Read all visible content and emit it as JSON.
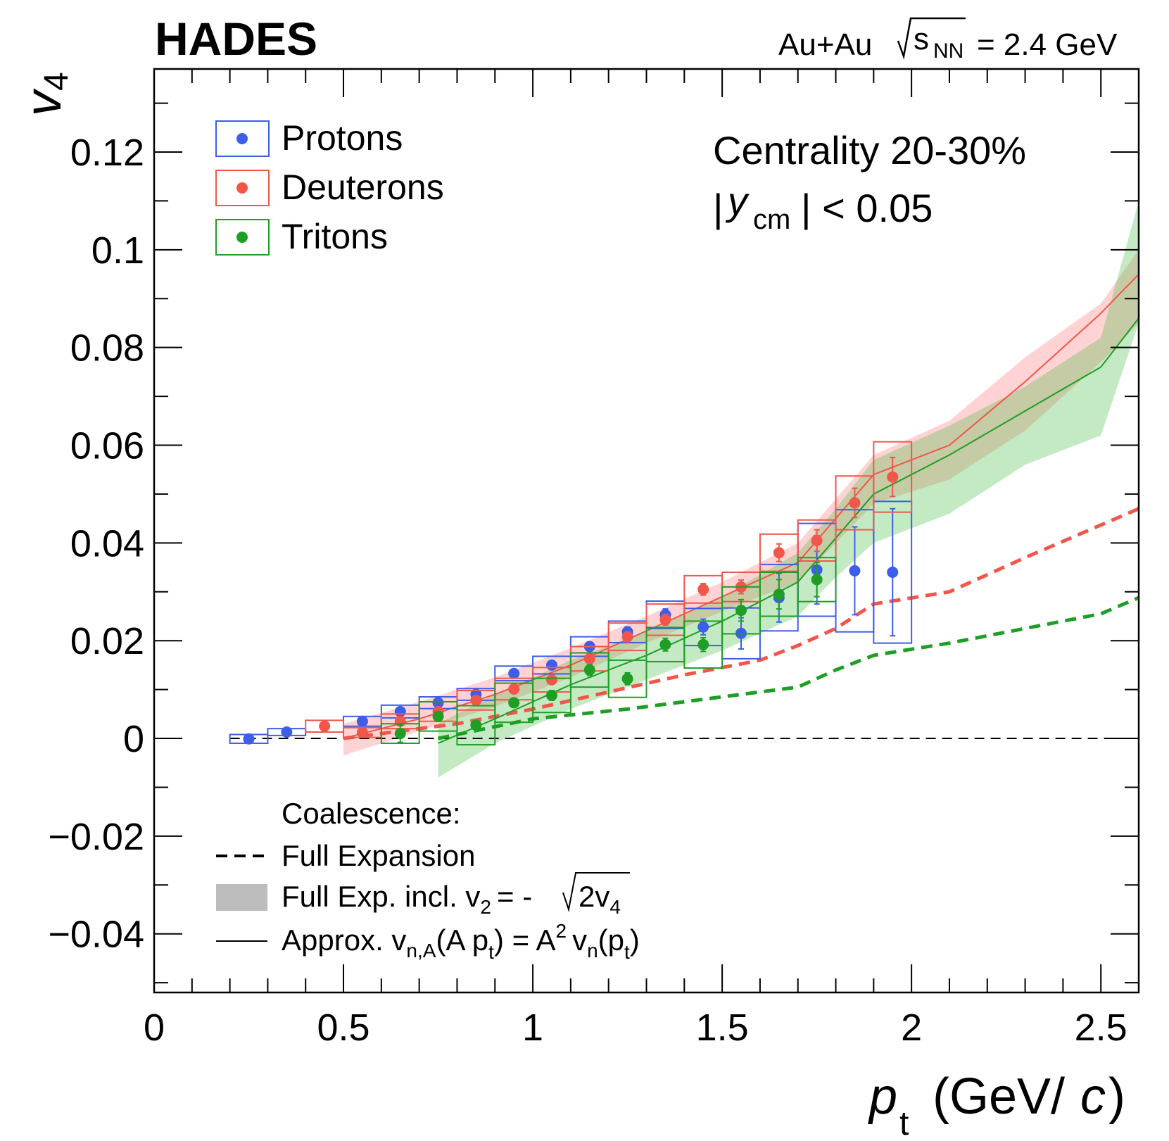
{
  "chart_data": {
    "type": "scatter",
    "experiment": "HADES",
    "system": {
      "collision": "Au+Au",
      "sqrt_s": "s",
      "sqrt_sub": "NN",
      "energy": "= 2.4 GeV"
    },
    "annotation": {
      "centrality": "Centrality 20-30%",
      "rap_a": "|",
      "rap_y": "y",
      "rap_sub": "cm",
      "rap_b": "| < 0.05"
    },
    "ylabel": {
      "main": "v",
      "sub": "4"
    },
    "xlabel": {
      "main": "p",
      "sub": "t",
      "unit_a": "(GeV/",
      "unit_c": "c",
      "unit_b": ")"
    },
    "xlim": [
      0,
      2.6
    ],
    "ylim": [
      -0.052,
      0.137
    ],
    "xticks": [
      0,
      0.5,
      1,
      1.5,
      2,
      2.5
    ],
    "xticks_minor": [
      0.1,
      0.2,
      0.3,
      0.4,
      0.6,
      0.7,
      0.8,
      0.9,
      1.1,
      1.2,
      1.3,
      1.4,
      1.6,
      1.7,
      1.8,
      1.9,
      2.1,
      2.2,
      2.3,
      2.4,
      2.6
    ],
    "yticks": [
      {
        "value": -0.04,
        "label": "−0.04"
      },
      {
        "value": -0.02,
        "label": "−0.02"
      },
      0,
      0.02,
      0.04,
      0.06,
      0.08,
      0.1,
      0.12
    ],
    "yticks_minor": [
      -0.05,
      -0.03,
      -0.01,
      0.01,
      0.03,
      0.05,
      0.07,
      0.09,
      0.11,
      0.13
    ],
    "bin_width": 0.1,
    "series": [
      {
        "name": "Protons",
        "color": "#3d5ee8",
        "x": [
          0.25,
          0.35,
          0.55,
          0.65,
          0.75,
          0.85,
          0.95,
          1.05,
          1.15,
          1.25,
          1.35,
          1.45,
          1.55,
          1.65,
          1.75,
          1.85,
          1.95
        ],
        "values": [
          -0.0001,
          0.0013,
          0.0035,
          0.0055,
          0.0073,
          0.009,
          0.0133,
          0.015,
          0.0188,
          0.0218,
          0.0253,
          0.0228,
          0.0215,
          0.0288,
          0.0345,
          0.0343,
          0.034
        ],
        "stat": [
          0.0003,
          0.0003,
          0.0004,
          0.0005,
          0.0005,
          0.0006,
          0.0007,
          0.0008,
          0.0009,
          0.001,
          0.0012,
          0.0016,
          0.0032,
          0.005,
          0.007,
          0.009,
          0.013
        ],
        "sys": [
          0.0009,
          0.0007,
          0.001,
          0.0013,
          0.0012,
          0.0012,
          0.0015,
          0.0018,
          0.002,
          0.0022,
          0.0028,
          0.0038,
          0.0052,
          0.0068,
          0.0095,
          0.0125,
          0.0145
        ]
      },
      {
        "name": "Deuterons",
        "color": "#f2564a",
        "x": [
          0.45,
          0.55,
          0.65,
          0.75,
          0.85,
          0.95,
          1.05,
          1.15,
          1.25,
          1.35,
          1.45,
          1.55,
          1.65,
          1.75,
          1.85,
          1.95
        ],
        "values": [
          0.0025,
          0.0012,
          0.0035,
          0.0055,
          0.0078,
          0.0101,
          0.012,
          0.0163,
          0.0208,
          0.0243,
          0.0305,
          0.031,
          0.038,
          0.0405,
          0.0482,
          0.0535
        ],
        "stat": [
          0.0004,
          0.0004,
          0.0005,
          0.0005,
          0.0006,
          0.0007,
          0.0008,
          0.0009,
          0.001,
          0.0011,
          0.0012,
          0.0014,
          0.0018,
          0.0022,
          0.003,
          0.004
        ],
        "sys": [
          0.0012,
          0.001,
          0.0015,
          0.002,
          0.002,
          0.0022,
          0.0025,
          0.0025,
          0.0028,
          0.0032,
          0.0028,
          0.003,
          0.0038,
          0.0042,
          0.0055,
          0.0072
        ],
        "fe_x": [
          0.5,
          0.8,
          1.0,
          1.2,
          1.4,
          1.6,
          1.7,
          1.8,
          1.9,
          2.1,
          2.3,
          2.6
        ],
        "fe": [
          0,
          0.003,
          0.006,
          0.0095,
          0.013,
          0.016,
          0.019,
          0.0225,
          0.0275,
          0.03,
          0.037,
          0.047
        ],
        "approx_x": [
          0.5,
          0.7,
          0.9,
          1.1,
          1.3,
          1.5,
          1.7,
          1.8,
          1.9,
          2.1,
          2.3,
          2.5,
          2.6
        ],
        "approx": [
          0,
          0.004,
          0.009,
          0.015,
          0.022,
          0.029,
          0.036,
          0.045,
          0.054,
          0.06,
          0.073,
          0.087,
          0.095
        ],
        "band_low": [
          -0.0035,
          0.0015,
          0.0065,
          0.0125,
          0.0195,
          0.026,
          0.032,
          0.04,
          0.048,
          0.053,
          0.063,
          0.077,
          0.085
        ],
        "band_high": [
          0.003,
          0.0075,
          0.0125,
          0.0185,
          0.025,
          0.032,
          0.04,
          0.049,
          0.058,
          0.065,
          0.078,
          0.089,
          0.1
        ]
      },
      {
        "name": "Tritons",
        "color": "#1f9e25",
        "x": [
          0.65,
          0.75,
          0.85,
          0.95,
          1.05,
          1.15,
          1.25,
          1.35,
          1.45,
          1.55,
          1.65,
          1.75
        ],
        "values": [
          0.001,
          0.0045,
          0.0027,
          0.0073,
          0.0088,
          0.014,
          0.0122,
          0.0192,
          0.0192,
          0.0262,
          0.0295,
          0.0325
        ],
        "stat": [
          0.0018,
          0.001,
          0.0008,
          0.0009,
          0.001,
          0.0011,
          0.0012,
          0.0013,
          0.0014,
          0.0022,
          0.003,
          0.0035
        ],
        "sys": [
          0.002,
          0.003,
          0.004,
          0.004,
          0.0035,
          0.0035,
          0.0038,
          0.0035,
          0.0048,
          0.0048,
          0.0045,
          0.0045
        ],
        "fe_x": [
          0.75,
          1.0,
          1.25,
          1.5,
          1.7,
          1.8,
          1.9,
          2.1,
          2.3,
          2.5,
          2.6
        ],
        "fe": [
          0,
          0.004,
          0.006,
          0.0085,
          0.0105,
          0.014,
          0.017,
          0.0195,
          0.0225,
          0.0255,
          0.0288
        ],
        "approx_x": [
          0.75,
          0.9,
          1.1,
          1.3,
          1.5,
          1.7,
          1.8,
          1.9,
          2.1,
          2.3,
          2.5,
          2.6
        ],
        "approx": [
          -0.001,
          0.004,
          0.011,
          0.017,
          0.024,
          0.032,
          0.041,
          0.05,
          0.058,
          0.067,
          0.076,
          0.086
        ],
        "band_low": [
          -0.008,
          -0.001,
          0.006,
          0.012,
          0.018,
          0.025,
          0.033,
          0.04,
          0.046,
          0.056,
          0.062,
          0.085
        ],
        "band_high": [
          0.003,
          0.009,
          0.016,
          0.022,
          0.029,
          0.038,
          0.047,
          0.057,
          0.064,
          0.072,
          0.082,
          0.11
        ]
      }
    ],
    "coalescence": {
      "title": "Coalescence:",
      "full_expansion": "Full Expansion",
      "band": {
        "a": "Full Exp. incl. v",
        "b": "2",
        "c": "= -",
        "d": "2v",
        "e": "4"
      },
      "approx": {
        "a": "Approx. v",
        "b": "n,A",
        "c": "(A p",
        "d": "t",
        "e": ") = A",
        "f": "2",
        "g": "v",
        "h": "n",
        "i": "(p",
        "j": "t",
        "k": ")"
      }
    }
  }
}
